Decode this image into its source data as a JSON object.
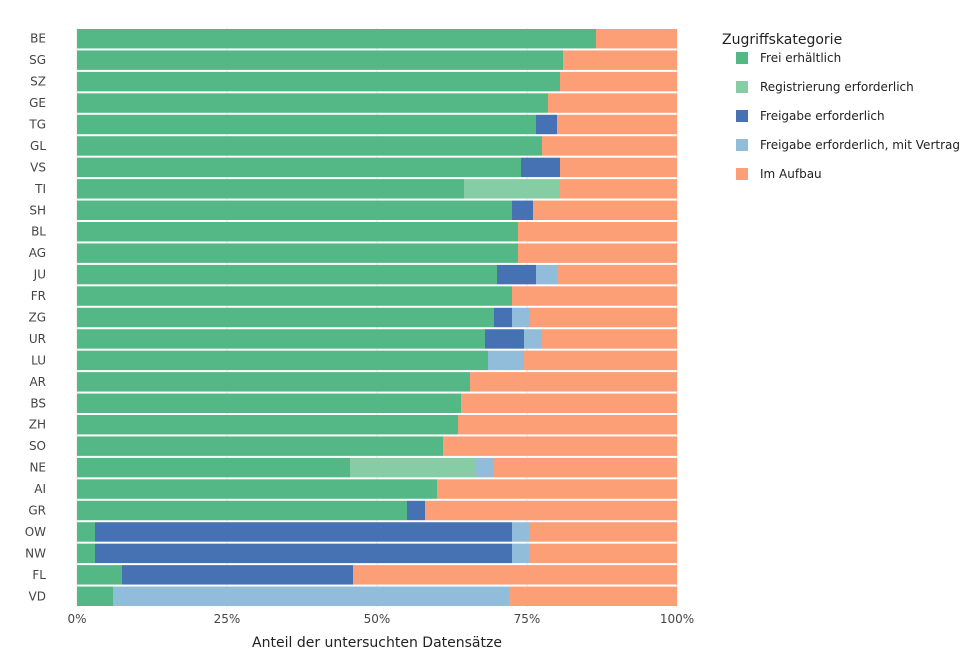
{
  "chart_data": {
    "type": "bar",
    "orientation": "horizontal",
    "stacked": true,
    "categories": [
      "BE",
      "SG",
      "SZ",
      "GE",
      "TG",
      "GL",
      "VS",
      "TI",
      "SH",
      "BL",
      "AG",
      "JU",
      "FR",
      "ZG",
      "UR",
      "LU",
      "AR",
      "BS",
      "ZH",
      "SO",
      "NE",
      "AI",
      "GR",
      "OW",
      "NW",
      "FL",
      "VD"
    ],
    "series": [
      {
        "name": "Frei erhältlich",
        "color": "#53b886",
        "values": [
          0.865,
          0.81,
          0.805,
          0.785,
          0.765,
          0.775,
          0.74,
          0.645,
          0.725,
          0.735,
          0.735,
          0.7,
          0.725,
          0.695,
          0.68,
          0.685,
          0.655,
          0.64,
          0.635,
          0.61,
          0.455,
          0.6,
          0.55,
          0.03,
          0.03,
          0.075,
          0.06
        ]
      },
      {
        "name": "Registrierung erforderlich",
        "color": "#86cca5",
        "values": [
          0,
          0,
          0,
          0,
          0,
          0,
          0,
          0.16,
          0,
          0,
          0,
          0,
          0,
          0,
          0,
          0,
          0,
          0,
          0,
          0,
          0.21,
          0,
          0,
          0,
          0,
          0,
          0
        ]
      },
      {
        "name": "Freigabe erforderlich",
        "color": "#4672b4",
        "values": [
          0,
          0,
          0,
          0,
          0.035,
          0,
          0.065,
          0,
          0.035,
          0,
          0,
          0.065,
          0,
          0.03,
          0.065,
          0,
          0,
          0,
          0,
          0,
          0,
          0,
          0.03,
          0.695,
          0.695,
          0.385,
          0
        ]
      },
      {
        "name": "Freigabe erforderlich, mit Vertrag",
        "color": "#91bcda",
        "values": [
          0,
          0,
          0,
          0,
          0,
          0,
          0,
          0,
          0,
          0,
          0,
          0.035,
          0,
          0.03,
          0.03,
          0.06,
          0,
          0,
          0,
          0,
          0.03,
          0,
          0,
          0.03,
          0.03,
          0,
          0.66
        ]
      },
      {
        "name": "Im Aufbau",
        "color": "#fc9e76",
        "values": [
          0.135,
          0.19,
          0.195,
          0.215,
          0.2,
          0.225,
          0.195,
          0.195,
          0.24,
          0.265,
          0.265,
          0.2,
          0.275,
          0.245,
          0.225,
          0.255,
          0.345,
          0.36,
          0.365,
          0.39,
          0.305,
          0.4,
          0.42,
          0.245,
          0.245,
          0.54,
          0.28
        ]
      }
    ],
    "x_ticks": [
      {
        "value": 0,
        "label": "0%"
      },
      {
        "value": 0.25,
        "label": "25%"
      },
      {
        "value": 0.5,
        "label": "50%"
      },
      {
        "value": 0.75,
        "label": "75%"
      },
      {
        "value": 1,
        "label": "100%"
      }
    ],
    "xlim": [
      0,
      1
    ],
    "xlabel": "Anteil der untersuchten Datensätze",
    "ylabel": "",
    "legend_title": "Zugriffskategorie",
    "legend_position": "right",
    "grid": true,
    "background": "#ffffff"
  }
}
